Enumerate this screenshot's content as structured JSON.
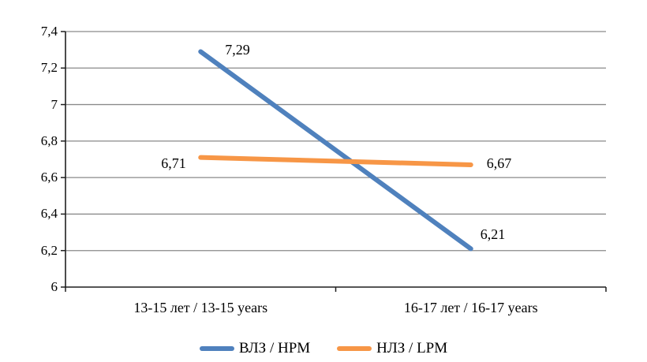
{
  "chart_data": {
    "type": "line",
    "title": "",
    "xlabel": "",
    "ylabel": "",
    "categories": [
      "13-15 лет / 13-15 years",
      "16-17 лет / 16-17 years"
    ],
    "series": [
      {
        "name": "ВЛЗ / HPM",
        "color": "#4F81BD",
        "values": [
          7.29,
          6.21
        ],
        "point_labels": [
          "7,29",
          "6,21"
        ]
      },
      {
        "name": "НЛЗ / LPM",
        "color": "#F79646",
        "values": [
          6.71,
          6.67
        ],
        "point_labels": [
          "6,71",
          "6,67"
        ]
      }
    ],
    "ylim": [
      6,
      7.4
    ],
    "ytick_step": 0.2,
    "ytick_labels": [
      "7,4",
      "7,2",
      "7",
      "6,8",
      "6,6",
      "6,4",
      "6,2",
      "6"
    ],
    "grid": "horizontal",
    "gridline_color": "#8A8A8A",
    "axis_color": "#1F1F1F",
    "legend_position": "bottom",
    "decimal_separator": ","
  }
}
